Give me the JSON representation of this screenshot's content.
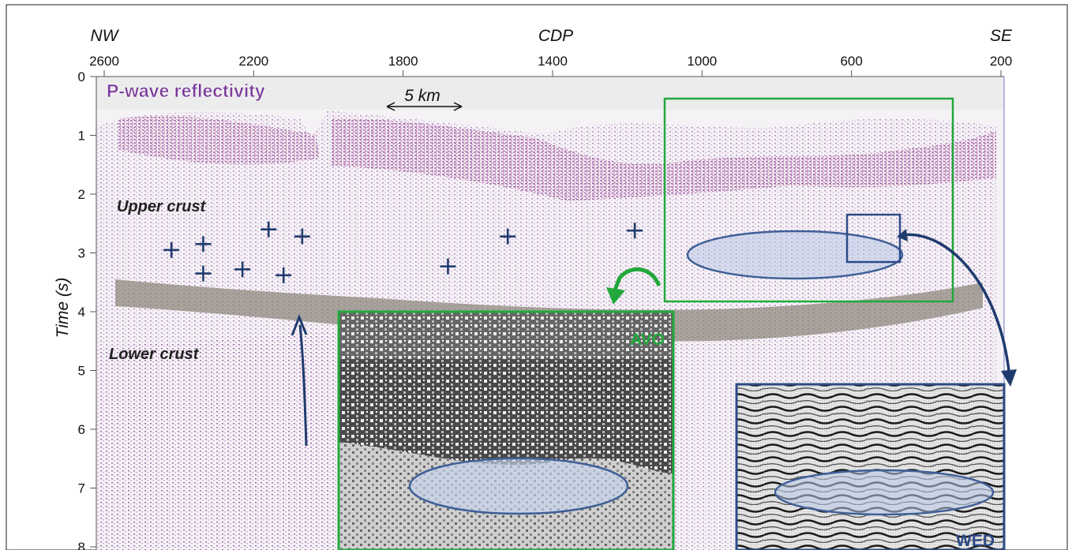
{
  "axes": {
    "top_label": "CDP",
    "left_label": "Time (s)",
    "left_direction": "NW",
    "right_direction": "SE",
    "cdp_ticks": [
      "2600",
      "2200",
      "1800",
      "1400",
      "1000",
      "600",
      "200"
    ],
    "time_ticks": [
      "0",
      "1",
      "2",
      "3",
      "4",
      "5",
      "6",
      "7",
      "8"
    ],
    "cdp_range": [
      2600,
      200
    ],
    "time_range": [
      0,
      8
    ]
  },
  "labels": {
    "section_title": "P-wave reflectivity",
    "scale_bar": "5 km",
    "upper_crust": "Upper crust",
    "lower_crust": "Lower crust",
    "avo_inset": "AVO",
    "wed_inset": "WED"
  },
  "markers": [
    {
      "cdp": 2420,
      "time": 2.95
    },
    {
      "cdp": 2335,
      "time": 2.85
    },
    {
      "cdp": 2335,
      "time": 3.35
    },
    {
      "cdp": 2230,
      "time": 3.28
    },
    {
      "cdp": 2160,
      "time": 2.6
    },
    {
      "cdp": 2120,
      "time": 3.38
    },
    {
      "cdp": 2070,
      "time": 2.72
    },
    {
      "cdp": 1680,
      "time": 3.23
    },
    {
      "cdp": 1520,
      "time": 2.72
    },
    {
      "cdp": 1180,
      "time": 2.62
    }
  ],
  "colors": {
    "reflectivity": "#8c3c9c",
    "marker": "#1f3b6e",
    "avo_box": "#22a83c",
    "wed_box": "#2c4a86",
    "moho_band": "#8a8378",
    "ellipse": "#3f5f96"
  }
}
